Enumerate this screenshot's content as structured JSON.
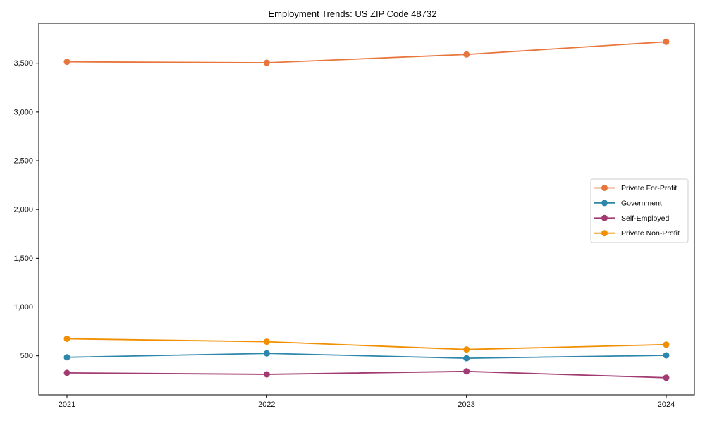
{
  "chart_data": {
    "type": "line",
    "title": "Employment Trends: US ZIP Code 48732",
    "categories": [
      "2021",
      "2022",
      "2023",
      "2024"
    ],
    "series": [
      {
        "name": "Private For-Profit",
        "color": "#E8763C",
        "values": [
          3515,
          3505,
          3590,
          3720
        ]
      },
      {
        "name": "Government",
        "color": "#2E86AB",
        "values": [
          485,
          525,
          475,
          505
        ]
      },
      {
        "name": "Self-Employed",
        "color": "#A23B72",
        "values": [
          325,
          310,
          340,
          275
        ]
      },
      {
        "name": "Private Non-Profit",
        "color": "#F18F01",
        "values": [
          675,
          645,
          565,
          615
        ]
      }
    ],
    "xlabel": "",
    "ylabel": "",
    "ylim": [
      100,
      3910
    ],
    "yticks": [
      500,
      1000,
      1500,
      2000,
      2500,
      3000,
      3500
    ],
    "ytick_labels": [
      "500",
      "1,000",
      "1,500",
      "2,000",
      "2,500",
      "3,000",
      "3,500"
    ],
    "grid": false,
    "legend_position": "center-right",
    "marker": "circle",
    "axis_color": "#000000",
    "tick_label_color": "#111111",
    "legend_border_color": "#cccccc"
  }
}
